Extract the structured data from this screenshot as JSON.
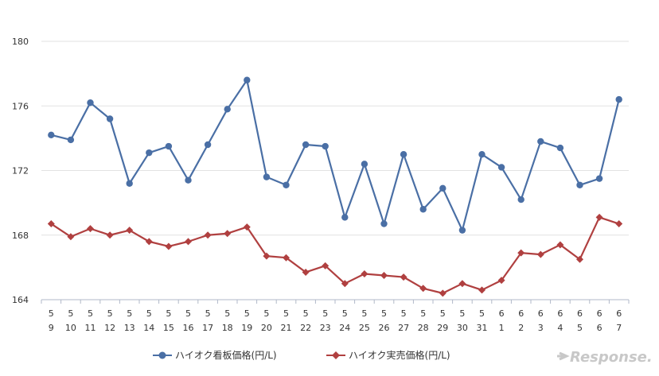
{
  "chart_data": {
    "type": "line",
    "categories": [
      [
        "5",
        "9"
      ],
      [
        "5",
        "10"
      ],
      [
        "5",
        "11"
      ],
      [
        "5",
        "12"
      ],
      [
        "5",
        "13"
      ],
      [
        "5",
        "14"
      ],
      [
        "5",
        "15"
      ],
      [
        "5",
        "16"
      ],
      [
        "5",
        "17"
      ],
      [
        "5",
        "18"
      ],
      [
        "5",
        "19"
      ],
      [
        "5",
        "20"
      ],
      [
        "5",
        "21"
      ],
      [
        "5",
        "22"
      ],
      [
        "5",
        "23"
      ],
      [
        "5",
        "24"
      ],
      [
        "5",
        "25"
      ],
      [
        "5",
        "26"
      ],
      [
        "5",
        "27"
      ],
      [
        "5",
        "28"
      ],
      [
        "5",
        "29"
      ],
      [
        "5",
        "30"
      ],
      [
        "5",
        "31"
      ],
      [
        "6",
        "1"
      ],
      [
        "6",
        "2"
      ],
      [
        "6",
        "3"
      ],
      [
        "6",
        "4"
      ],
      [
        "6",
        "5"
      ],
      [
        "6",
        "6"
      ],
      [
        "6",
        "7"
      ]
    ],
    "series": [
      {
        "name": "ハイオク看板価格(円/L)",
        "color": "#4a6fa5",
        "marker": "circle",
        "values": [
          174.2,
          173.9,
          176.2,
          175.2,
          171.2,
          173.1,
          173.5,
          171.4,
          173.6,
          175.8,
          177.6,
          171.6,
          171.1,
          173.6,
          173.5,
          169.1,
          172.4,
          168.7,
          173.0,
          169.6,
          170.9,
          168.3,
          173.0,
          172.2,
          170.2,
          173.8,
          173.4,
          171.1,
          171.5,
          176.4
        ]
      },
      {
        "name": "ハイオク実売価格(円/L)",
        "color": "#b04040",
        "marker": "diamond",
        "values": [
          168.7,
          167.9,
          168.4,
          168.0,
          168.3,
          167.6,
          167.3,
          167.6,
          168.0,
          168.1,
          168.5,
          166.7,
          166.6,
          165.7,
          166.1,
          165.0,
          165.6,
          165.5,
          165.4,
          164.7,
          164.4,
          165.0,
          164.6,
          165.2,
          166.9,
          166.8,
          167.4,
          166.5,
          169.1,
          168.7
        ]
      }
    ],
    "ylim": [
      164,
      180
    ],
    "yticks": [
      164,
      168,
      172,
      176,
      180
    ],
    "grid": true,
    "legend_position": "bottom-center"
  },
  "watermark": "Response."
}
